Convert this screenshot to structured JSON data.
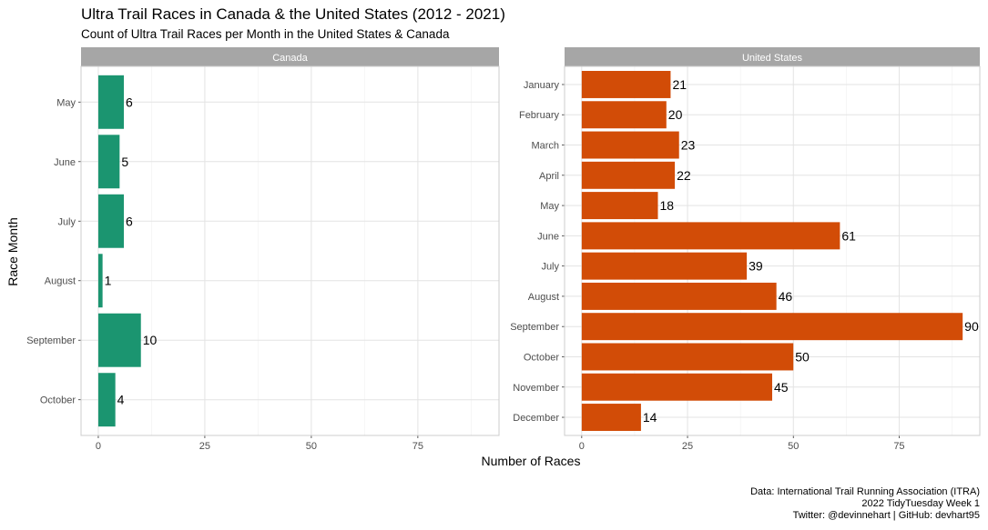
{
  "chart_data": {
    "type": "bar",
    "orientation": "horizontal",
    "title": "Ultra Trail Races in Canada & the United States (2012 - 2021)",
    "subtitle": "Count of Ultra Trail Races per Month in the United States & Canada",
    "xlabel": "Number of Races",
    "ylabel": "Race Month",
    "xlim": [
      0,
      90
    ],
    "x_ticks": [
      "0",
      "25",
      "50",
      "75"
    ],
    "grid": true,
    "caption": [
      "Data: International Trail Running Association (ITRA)",
      "2022 TidyTuesday Week 1",
      "Twitter: @devinnehart | GitHub: devhart95"
    ],
    "panels": [
      {
        "name": "Canada",
        "color": "#1b9570",
        "categories": [
          "May",
          "June",
          "July",
          "August",
          "September",
          "October"
        ],
        "values": [
          6,
          5,
          6,
          1,
          10,
          4
        ]
      },
      {
        "name": "United States",
        "color": "#d24c07",
        "categories": [
          "January",
          "February",
          "March",
          "April",
          "May",
          "June",
          "July",
          "August",
          "September",
          "October",
          "November",
          "December"
        ],
        "values": [
          21,
          20,
          23,
          22,
          18,
          61,
          39,
          46,
          90,
          50,
          45,
          14
        ]
      }
    ]
  }
}
